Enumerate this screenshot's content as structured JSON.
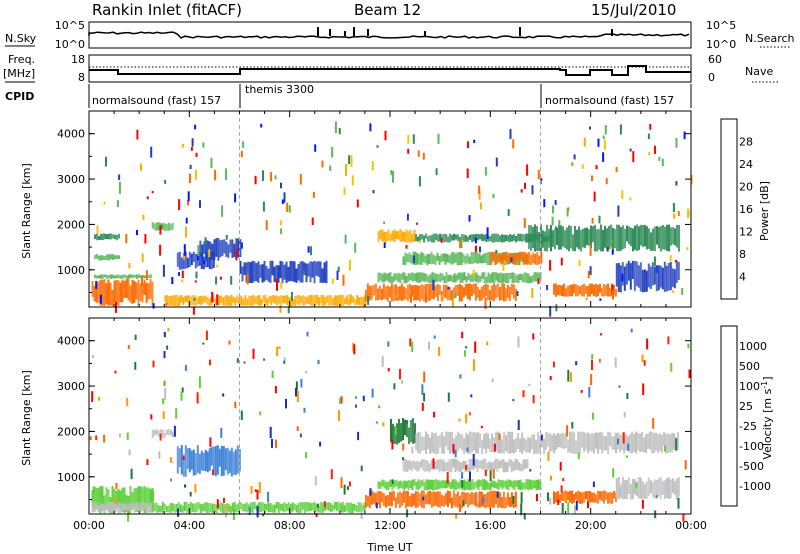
{
  "header": {
    "station": "Rankin Inlet (fitACF)",
    "beam": "Beam 12",
    "date": "15/Jul/2010"
  },
  "noise_panel": {
    "left_label": "N.Sky",
    "right_label": "N.Search",
    "left_ticks": [
      "10^5",
      "10^0"
    ],
    "right_ticks": [
      "10^5",
      "10^0"
    ]
  },
  "freq_panel": {
    "left_label_1": "Freq.",
    "left_label_2": "[MHz]",
    "right_label": "Nave",
    "left_ticks": [
      "18",
      "8"
    ],
    "right_ticks": [
      "60",
      "0"
    ]
  },
  "cpid_panel": {
    "label": "CPID",
    "segments": [
      {
        "name": "normalsound (fast) 157",
        "start_h": 0,
        "end_h": 6
      },
      {
        "name": "themis 3300",
        "start_h": 6,
        "end_h": 18
      },
      {
        "name": "normalsound (fast) 157",
        "start_h": 18,
        "end_h": 24
      }
    ]
  },
  "chart_data": [
    {
      "type": "heatmap",
      "title": "Power",
      "ylabel": "Slant Range [km]",
      "xlabel": "",
      "x_range_h": [
        0,
        24
      ],
      "ylim": [
        180,
        4500
      ],
      "yticks": [
        1000,
        2000,
        3000,
        4000
      ],
      "colorbar": {
        "label": "Power [dB]",
        "ticks": [
          "28",
          "24",
          "20",
          "16",
          "12",
          "8",
          "4"
        ],
        "colors": [
          "#ff0000",
          "#ff6a00",
          "#ffaa00",
          "#f0c800",
          "#5cb85c",
          "#2e8b57",
          "#1f3fbf",
          "#0018ff"
        ]
      },
      "echo_regions": [
        {
          "t0": 0.1,
          "t1": 2.5,
          "r0": 200,
          "r1": 800,
          "level": "28"
        },
        {
          "t0": 0.2,
          "t1": 2.5,
          "r0": 800,
          "r1": 900,
          "level": "16"
        },
        {
          "t0": 0.2,
          "t1": 1.2,
          "r0": 1650,
          "r1": 1800,
          "level": "12"
        },
        {
          "t0": 0.2,
          "t1": 1.2,
          "r0": 1200,
          "r1": 1350,
          "level": "16"
        },
        {
          "t0": 2.5,
          "t1": 3.3,
          "r0": 1850,
          "r1": 2050,
          "level": "16"
        },
        {
          "t0": 3.5,
          "t1": 5.0,
          "r0": 1000,
          "r1": 1400,
          "level": "8"
        },
        {
          "t0": 4.4,
          "t1": 6.0,
          "r0": 1200,
          "r1": 1700,
          "level": "8"
        },
        {
          "t0": 3.0,
          "t1": 11.0,
          "r0": 200,
          "r1": 450,
          "level": "24"
        },
        {
          "t0": 6.0,
          "t1": 9.5,
          "r0": 700,
          "r1": 1200,
          "level": "8"
        },
        {
          "t0": 11.0,
          "t1": 17.0,
          "r0": 300,
          "r1": 700,
          "level": "28"
        },
        {
          "t0": 11.5,
          "t1": 18.0,
          "r0": 700,
          "r1": 950,
          "level": "16"
        },
        {
          "t0": 11.5,
          "t1": 13.0,
          "r0": 1600,
          "r1": 1900,
          "level": "24"
        },
        {
          "t0": 12.5,
          "t1": 17.5,
          "r0": 1100,
          "r1": 1400,
          "level": "16"
        },
        {
          "t0": 13.0,
          "t1": 18.5,
          "r0": 1600,
          "r1": 1800,
          "level": "12"
        },
        {
          "t0": 16.0,
          "t1": 18.0,
          "r0": 1100,
          "r1": 1400,
          "level": "28"
        },
        {
          "t0": 17.5,
          "t1": 23.5,
          "r0": 1400,
          "r1": 2000,
          "level": "12"
        },
        {
          "t0": 18.5,
          "t1": 21.0,
          "r0": 400,
          "r1": 700,
          "level": "28"
        },
        {
          "t0": 21.0,
          "t1": 23.5,
          "r0": 500,
          "r1": 1200,
          "level": "8"
        }
      ]
    },
    {
      "type": "heatmap",
      "title": "Velocity",
      "ylabel": "Slant Range [km]",
      "xlabel": "Time UT",
      "x_range_h": [
        0,
        24
      ],
      "xticks": [
        "00:00",
        "04:00",
        "08:00",
        "12:00",
        "16:00",
        "20:00",
        "00:00"
      ],
      "ylim": [
        180,
        4500
      ],
      "yticks": [
        1000,
        2000,
        3000,
        4000
      ],
      "colorbar": {
        "label": "Velocity [m s^-1]",
        "label_main": "Velocity [m s",
        "label_sup": "-1",
        "label_end": "]",
        "ticks": [
          "1000",
          "500",
          "100",
          "25",
          "-25",
          "-100",
          "-500",
          "-1000"
        ],
        "colors": [
          "#1a2fbf",
          "#3b7fd6",
          "#1f7a3a",
          "#5ccf3a",
          "#bebebe",
          "#ff9900",
          "#ff6600",
          "#ff2200",
          "#ff0000"
        ]
      },
      "echo_regions": [
        {
          "t0": 0.1,
          "t1": 2.5,
          "r0": 200,
          "r1": 800,
          "level": "100"
        },
        {
          "t0": 0.1,
          "t1": 2.5,
          "r0": 200,
          "r1": 450,
          "level": "25"
        },
        {
          "t0": 2.5,
          "t1": 3.3,
          "r0": 1850,
          "r1": 2050,
          "level": "25"
        },
        {
          "t0": 3.5,
          "t1": 6.0,
          "r0": 1000,
          "r1": 1700,
          "level": "1000"
        },
        {
          "t0": 2.5,
          "t1": 11.0,
          "r0": 200,
          "r1": 450,
          "level": "100"
        },
        {
          "t0": 11.0,
          "t1": 17.0,
          "r0": 300,
          "r1": 700,
          "level": "-100"
        },
        {
          "t0": 11.5,
          "t1": 18.0,
          "r0": 700,
          "r1": 950,
          "level": "100"
        },
        {
          "t0": 12.0,
          "t1": 13.0,
          "r0": 1700,
          "r1": 2300,
          "level": "500"
        },
        {
          "t0": 12.5,
          "t1": 17.5,
          "r0": 1100,
          "r1": 1400,
          "level": "25"
        },
        {
          "t0": 13.0,
          "t1": 23.5,
          "r0": 1500,
          "r1": 2000,
          "level": "25"
        },
        {
          "t0": 18.5,
          "t1": 21.0,
          "r0": 400,
          "r1": 700,
          "level": "-100"
        },
        {
          "t0": 21.0,
          "t1": 23.5,
          "r0": 500,
          "r1": 1000,
          "level": "25"
        }
      ]
    }
  ]
}
